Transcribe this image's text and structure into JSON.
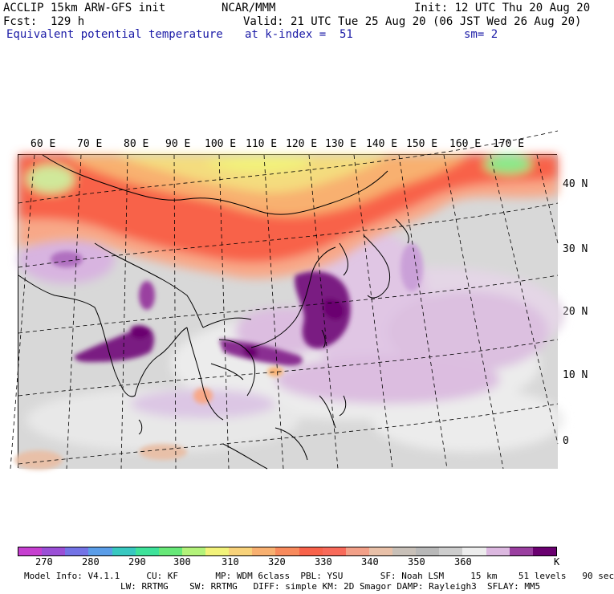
{
  "header": {
    "model": "ACCLIP 15km ARW-GFS init",
    "center": "NCAR/MMM",
    "init": "Init: 12 UTC Thu 20 Aug 20",
    "fcst": "Fcst:  129 h",
    "valid": "Valid: 21 UTC Tue 25 Aug 20 (06 JST Wed 26 Aug 20)",
    "field": "Equivalent potential temperature",
    "level": "at k-index =  51",
    "smooth": "sm= 2"
  },
  "map": {
    "lon_labels": [
      "60 E",
      "70 E",
      "80 E",
      "90 E",
      "100 E",
      "110 E",
      "120 E",
      "130 E",
      "140 E",
      "150 E",
      "160 E",
      "170 E"
    ],
    "lat_labels": [
      "40 N",
      "30 N",
      "20 N",
      "10 N",
      "0"
    ]
  },
  "legend": {
    "ticks": [
      "270",
      "280",
      "290",
      "300",
      "310",
      "320",
      "330",
      "340",
      "350",
      "360"
    ],
    "unit": "K",
    "colors": [
      "#c63fd0",
      "#9a4fd6",
      "#7373e6",
      "#5a9de8",
      "#38c8c0",
      "#3ee29a",
      "#67e878",
      "#b3f27a",
      "#f2f27a",
      "#f8d27a",
      "#f8b070",
      "#f88a5c",
      "#f8624a",
      "#f86a5a",
      "#f2a088",
      "#e8c0a8",
      "#c8c0b8",
      "#b8b8b8",
      "#cdcdcd",
      "#ededed",
      "#dcb8e0",
      "#9a3fa0",
      "#6a0070"
    ]
  },
  "footer": {
    "line1": "Model Info: V4.1.1     CU: KF       MP: WDM 6class  PBL: YSU       SF: Noah LSM     15 km    51 levels   90 sec",
    "line2": "LW: RRTMG    SW: RRTMG   DIFF: simple KM: 2D Smagor DAMP: Rayleigh3  SFLAY: MM5"
  }
}
